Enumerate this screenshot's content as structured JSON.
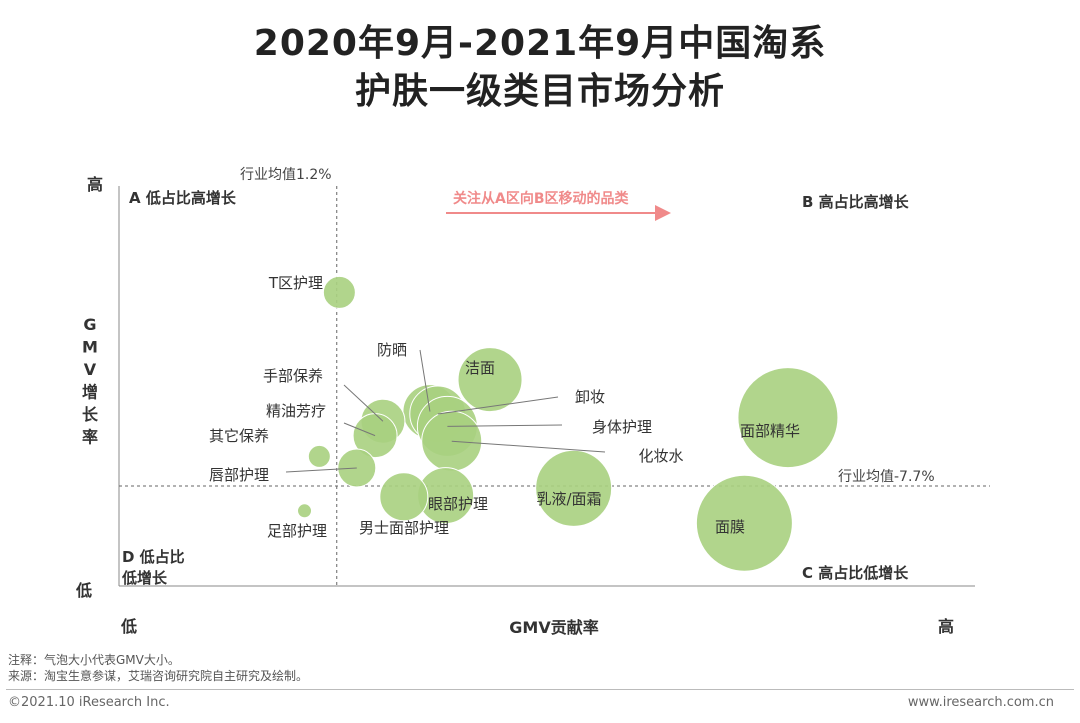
{
  "title_line1": "2020年9月-2021年9月中国淘系",
  "title_line2": "护肤一级类目市场分析",
  "notes": {
    "note": "注释：气泡大小代表GMV大小。",
    "source": "来源：淘宝生意参谋，艾瑞咨询研究院自主研究及绘制。"
  },
  "footer": {
    "copyright": "©2021.10 iResearch Inc.",
    "website": "www.iresearch.com.cn"
  },
  "chart_data": {
    "type": "bubble",
    "xlabel": "GMV贡献率",
    "ylabel": "GMV增长率",
    "x_low": "低",
    "x_high": "高",
    "y_low": "低",
    "y_high": "高",
    "xlim": [
      0,
      100
    ],
    "ylim": [
      0,
      100
    ],
    "vline": {
      "x": 25,
      "label": "行业均值1.2%"
    },
    "hline": {
      "y": 25,
      "label": "行业均值-7.7%"
    },
    "quadrants": {
      "A": "A 低占比高增长",
      "B": "B 高占比高增长",
      "C": "C 高占比低增长",
      "D": "D 低占比低增长"
    },
    "annotation": "关注从A区向B区移动的品类",
    "colors": {
      "bubble": "#a9d07f",
      "bubble_edge": "#ffffff",
      "annotation": "#f08a8a",
      "axis": "#888888"
    },
    "bubbles": [
      {
        "name": "T区护理",
        "x": 25.3,
        "y": 73.4,
        "size": 16
      },
      {
        "name": "防晒",
        "x": 35.7,
        "y": 43.6,
        "size": 27
      },
      {
        "name": "洁面",
        "x": 42.6,
        "y": 51.6,
        "size": 32
      },
      {
        "name": "手部保养",
        "x": 30.3,
        "y": 41.2,
        "size": 22
      },
      {
        "name": "精油芳疗",
        "x": 29.4,
        "y": 37.6,
        "size": 22
      },
      {
        "name": "卸妆",
        "x": 36.6,
        "y": 43.0,
        "size": 28
      },
      {
        "name": "身体护理",
        "x": 37.7,
        "y": 39.9,
        "size": 30
      },
      {
        "name": "化妆水",
        "x": 38.2,
        "y": 36.2,
        "size": 30
      },
      {
        "name": "其它保养",
        "x": 23.0,
        "y": 32.4,
        "size": 11
      },
      {
        "name": "唇部护理",
        "x": 27.3,
        "y": 29.5,
        "size": 19
      },
      {
        "name": "眼部护理",
        "x": 37.5,
        "y": 22.6,
        "size": 28
      },
      {
        "name": "男士面部护理",
        "x": 32.7,
        "y": 22.3,
        "size": 24
      },
      {
        "name": "乳液/面霜",
        "x": 52.2,
        "y": 24.4,
        "size": 38
      },
      {
        "name": "面部精华",
        "x": 76.8,
        "y": 42.1,
        "size": 50
      },
      {
        "name": "面膜",
        "x": 71.8,
        "y": 15.7,
        "size": 48
      },
      {
        "name": "足部护理",
        "x": 21.3,
        "y": 18.8,
        "size": 7
      }
    ]
  }
}
